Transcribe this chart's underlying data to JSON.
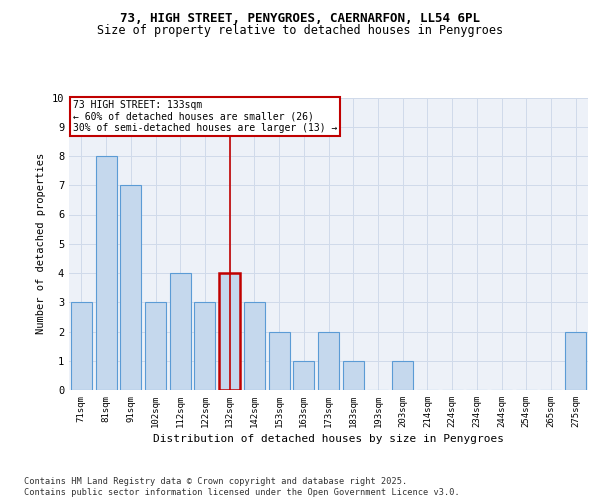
{
  "title_line1": "73, HIGH STREET, PENYGROES, CAERNARFON, LL54 6PL",
  "title_line2": "Size of property relative to detached houses in Penygroes",
  "xlabel": "Distribution of detached houses by size in Penygroes",
  "ylabel": "Number of detached properties",
  "categories": [
    "71sqm",
    "81sqm",
    "91sqm",
    "102sqm",
    "112sqm",
    "122sqm",
    "132sqm",
    "142sqm",
    "153sqm",
    "163sqm",
    "173sqm",
    "183sqm",
    "193sqm",
    "203sqm",
    "214sqm",
    "224sqm",
    "234sqm",
    "244sqm",
    "254sqm",
    "265sqm",
    "275sqm"
  ],
  "values": [
    3,
    8,
    7,
    3,
    4,
    3,
    4,
    3,
    2,
    1,
    2,
    1,
    0,
    1,
    0,
    0,
    0,
    0,
    0,
    0,
    2
  ],
  "highlight_index": 6,
  "highlight_value": 4,
  "bar_color": "#c5d8ed",
  "bar_edge_color": "#5b9bd5",
  "highlight_bar_edge_color": "#c00000",
  "highlight_line_color": "#c00000",
  "annotation_box_color": "#c00000",
  "annotation_text": "73 HIGH STREET: 133sqm\n← 60% of detached houses are smaller (26)\n30% of semi-detached houses are larger (13) →",
  "annotation_fontsize": 7.0,
  "ylim": [
    0,
    10
  ],
  "yticks": [
    0,
    1,
    2,
    3,
    4,
    5,
    6,
    7,
    8,
    9,
    10
  ],
  "grid_color": "#d0daea",
  "background_color": "#edf1f8",
  "footer_text": "Contains HM Land Registry data © Crown copyright and database right 2025.\nContains public sector information licensed under the Open Government Licence v3.0.",
  "title_fontsize": 9,
  "subtitle_fontsize": 8.5
}
